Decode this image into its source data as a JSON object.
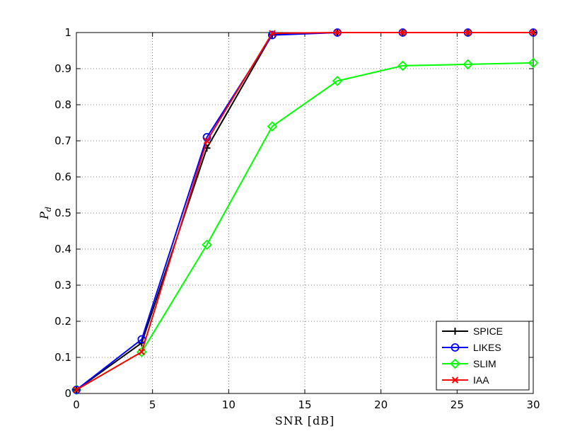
{
  "chart_data": {
    "type": "line",
    "title": "",
    "xlabel": "SNR [dB]",
    "ylabel_main": "P",
    "ylabel_sub": "d",
    "xlim": [
      0,
      30
    ],
    "ylim": [
      0,
      1
    ],
    "grid": true,
    "legend_position": "bottom-right",
    "x_ticks": [
      {
        "v": 0,
        "label": "0"
      },
      {
        "v": 5,
        "label": "5"
      },
      {
        "v": 10,
        "label": "10"
      },
      {
        "v": 15,
        "label": "15"
      },
      {
        "v": 20,
        "label": "20"
      },
      {
        "v": 25,
        "label": "25"
      },
      {
        "v": 30,
        "label": "30"
      }
    ],
    "y_ticks": [
      {
        "v": 0,
        "label": "0"
      },
      {
        "v": 0.1,
        "label": "0.1"
      },
      {
        "v": 0.2,
        "label": "0.2"
      },
      {
        "v": 0.3,
        "label": "0.3"
      },
      {
        "v": 0.4,
        "label": "0.4"
      },
      {
        "v": 0.5,
        "label": "0.5"
      },
      {
        "v": 0.6,
        "label": "0.6"
      },
      {
        "v": 0.7,
        "label": "0.7"
      },
      {
        "v": 0.8,
        "label": "0.8"
      },
      {
        "v": 0.9,
        "label": "0.9"
      },
      {
        "v": 1,
        "label": "1"
      }
    ],
    "x": [
      0,
      4.29,
      8.57,
      12.86,
      17.14,
      21.43,
      25.71,
      30
    ],
    "series": [
      {
        "name": "SPICE",
        "color": "#000000",
        "marker": "plus",
        "values": [
          0.01,
          0.14,
          0.68,
          0.995,
          1,
          1,
          1,
          1
        ]
      },
      {
        "name": "LIKES",
        "color": "#0000ff",
        "marker": "circle",
        "values": [
          0.01,
          0.15,
          0.71,
          0.993,
          1,
          1,
          1,
          1
        ]
      },
      {
        "name": "SLIM",
        "color": "#00ff00",
        "marker": "diamond",
        "values": [
          0.01,
          0.115,
          0.412,
          0.74,
          0.866,
          0.908,
          0.912,
          0.916
        ]
      },
      {
        "name": "IAA",
        "color": "#ff0000",
        "marker": "x",
        "values": [
          0.01,
          0.115,
          0.7,
          0.998,
          1,
          1,
          1,
          1
        ]
      }
    ]
  }
}
